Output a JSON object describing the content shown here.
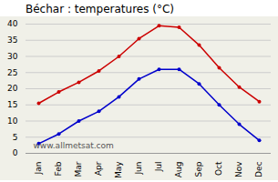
{
  "chart_data": {
    "type": "line",
    "title": "Béchar : temperatures (°C)",
    "categories": [
      "Jan",
      "Feb",
      "Mar",
      "Apr",
      "May",
      "Jun",
      "Jul",
      "Aug",
      "Sep",
      "Oct",
      "Nov",
      "Dec"
    ],
    "series": [
      {
        "color": "#cc0000",
        "marker": "circle",
        "values": [
          15.5,
          19.0,
          22.0,
          25.5,
          30.0,
          35.5,
          39.5,
          39.0,
          33.5,
          26.5,
          20.5,
          16.0
        ]
      },
      {
        "color": "#0000cc",
        "marker": "circle",
        "values": [
          3.0,
          6.0,
          10.0,
          13.0,
          17.5,
          23.0,
          26.0,
          26.0,
          21.5,
          15.0,
          9.0,
          4.0
        ]
      }
    ],
    "ylim": [
      0,
      40
    ],
    "yticks": [
      0,
      5,
      10,
      15,
      20,
      25,
      30,
      35,
      40
    ],
    "grid": true,
    "annotations": [
      "www.allmetsat.com"
    ]
  }
}
